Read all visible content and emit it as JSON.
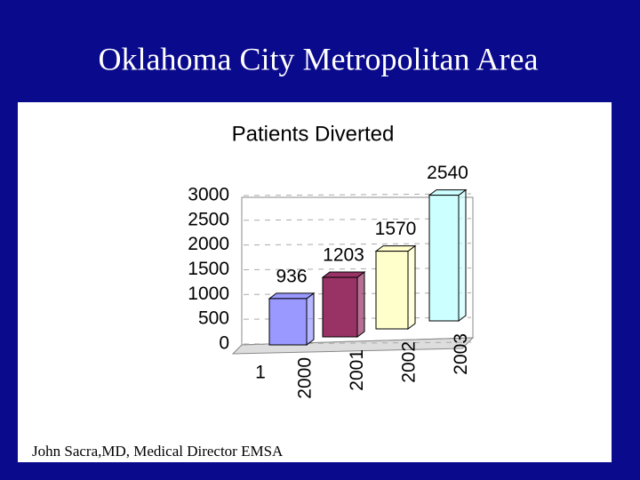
{
  "title": "Oklahoma City Metropolitan Area",
  "footer": "John Sacra,MD, Medical Director EMSA",
  "chart_data": {
    "type": "bar",
    "title": "Patients Diverted",
    "categories": [
      "1"
    ],
    "series": [
      {
        "name": "2000",
        "color": "#9999ff",
        "values": [
          936
        ]
      },
      {
        "name": "2001",
        "color": "#993366",
        "values": [
          1203
        ]
      },
      {
        "name": "2002",
        "color": "#ffffcc",
        "values": [
          1570
        ]
      },
      {
        "name": "2003",
        "color": "#ccffff",
        "values": [
          2540
        ]
      }
    ],
    "ylim": [
      0,
      3000
    ],
    "yticks": [
      0,
      500,
      1000,
      1500,
      2000,
      2500,
      3000
    ],
    "grid": true
  }
}
